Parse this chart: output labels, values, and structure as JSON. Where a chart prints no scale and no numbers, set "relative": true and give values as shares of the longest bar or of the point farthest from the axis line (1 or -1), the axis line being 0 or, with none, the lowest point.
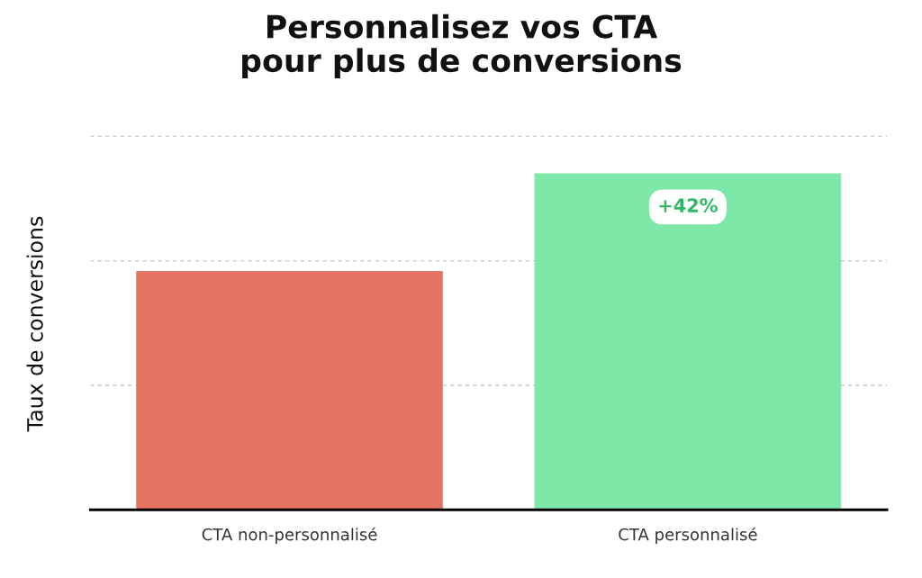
{
  "chart_data": {
    "type": "bar",
    "title": "Personnalisez vos CTA\npour plus de conversions",
    "ylabel": "Taux de conversions",
    "categories": [
      "CTA non-personnalisé",
      "CTA personnalisé"
    ],
    "values": [
      0.71,
      1
    ],
    "colors": [
      "#e57563",
      "#7de8a8"
    ],
    "relative": true,
    "ref_lines": [
      {
        "axis": "y",
        "value": 0.37,
        "color": "#c8c8c8",
        "line_style": "dashed"
      },
      {
        "axis": "y",
        "value": 0.74,
        "color": "#c8c8c8",
        "line_style": "dashed"
      },
      {
        "axis": "y",
        "value": 1.11,
        "color": "#c8c8c8",
        "line_style": "dashed"
      }
    ],
    "annotations": [
      "+42%"
    ]
  }
}
